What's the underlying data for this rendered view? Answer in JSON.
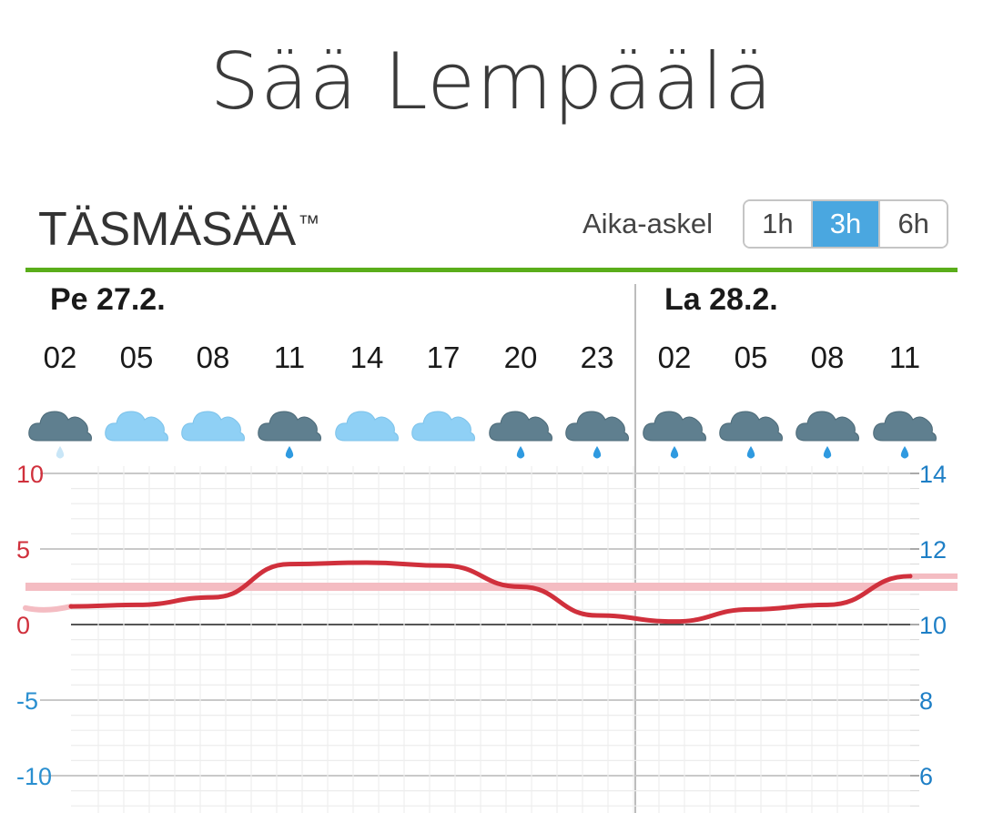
{
  "page": {
    "title": "Sää Lempäälä"
  },
  "section": {
    "title": "TÄSMÄSÄÄ",
    "trademark": "™",
    "step_label": "Aika-askel",
    "steps": [
      {
        "label": "1h",
        "active": false
      },
      {
        "label": "3h",
        "active": true
      },
      {
        "label": "6h",
        "active": false
      }
    ]
  },
  "days": [
    {
      "label": "Pe 27.2."
    },
    {
      "label": "La 28.2."
    }
  ],
  "hours": [
    "02",
    "05",
    "08",
    "11",
    "14",
    "17",
    "20",
    "23",
    "02",
    "05",
    "08",
    "11"
  ],
  "icons": [
    "dark-cloud-light-rain-icon",
    "light-cloud-icon",
    "light-cloud-icon",
    "dark-cloud-rain-icon",
    "light-cloud-icon",
    "light-cloud-icon",
    "dark-cloud-rain-icon",
    "dark-cloud-rain-icon",
    "dark-cloud-rain-icon",
    "dark-cloud-rain-icon",
    "dark-cloud-rain-icon",
    "dark-cloud-rain-icon"
  ],
  "colors": {
    "temperature": "#d0303c",
    "temperature_band": "#f4bcc2",
    "right_axis": "#1e7fc6",
    "accent_green": "#5aad1a",
    "button_active": "#4aa7e0"
  },
  "chart_data": {
    "type": "line",
    "x": [
      "02",
      "05",
      "08",
      "11",
      "14",
      "17",
      "20",
      "23",
      "02",
      "05",
      "08",
      "11"
    ],
    "left_axis": {
      "ticks": [
        "10",
        "5",
        "0",
        "-5",
        "-10"
      ],
      "tick_colors": [
        "#d0303c",
        "#d0303c",
        "#d0303c",
        "#2a8fd0",
        "#2a8fd0"
      ],
      "range": [
        -10,
        10
      ]
    },
    "right_axis": {
      "ticks": [
        "14",
        "12",
        "10",
        "8",
        "6"
      ],
      "range": [
        6,
        14
      ]
    },
    "series": [
      {
        "values": [
          1.2,
          1.3,
          1.8,
          4.0,
          4.1,
          3.9,
          2.5,
          0.6,
          0.2,
          1.0,
          1.3,
          3.2
        ]
      }
    ],
    "reference_level": 2.5,
    "grid": true
  }
}
